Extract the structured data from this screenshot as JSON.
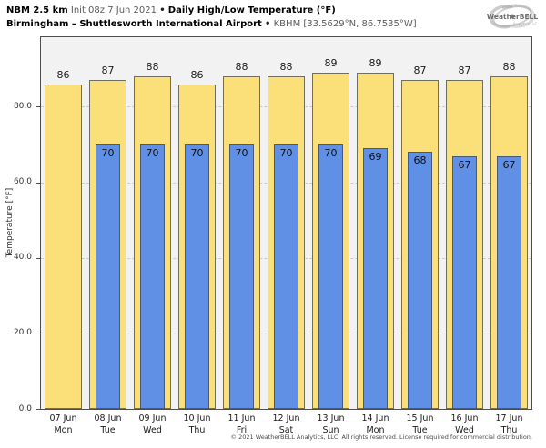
{
  "header": {
    "line1": {
      "model": "NBM 2.5 km",
      "init": "Init 08z 7 Jun 2021",
      "sep": "•",
      "product": "Daily High/Low Temperature (°F)"
    },
    "line2": {
      "location": "Birmingham – Shuttlesworth International Airport",
      "sep": "•",
      "station": "KBHM [33.5629°N, 86.7535°W]"
    }
  },
  "logo": {
    "brand": "WeatherBELL",
    "sub": "Analytics LLC"
  },
  "chart_data": {
    "type": "bar",
    "title": "NBM 2.5 km Daily High/Low Temperature (°F) — Birmingham – Shuttlesworth International Airport (KBHM)",
    "ylabel": "Temperature [°F]",
    "ylim": [
      0,
      98.4
    ],
    "yticks": [
      0,
      20,
      40,
      60,
      80
    ],
    "ytick_labels": [
      "0.0",
      "20.0",
      "40.0",
      "60.0",
      "80.0"
    ],
    "grid": "horizontal-dashed",
    "legend": "none",
    "categories": [
      {
        "date": "07 Jun",
        "day": "Mon"
      },
      {
        "date": "08 Jun",
        "day": "Tue"
      },
      {
        "date": "09 Jun",
        "day": "Wed"
      },
      {
        "date": "10 Jun",
        "day": "Thu"
      },
      {
        "date": "11 Jun",
        "day": "Fri"
      },
      {
        "date": "12 Jun",
        "day": "Sat"
      },
      {
        "date": "13 Jun",
        "day": "Sun"
      },
      {
        "date": "14 Jun",
        "day": "Mon"
      },
      {
        "date": "15 Jun",
        "day": "Tue"
      },
      {
        "date": "16 Jun",
        "day": "Wed"
      },
      {
        "date": "17 Jun",
        "day": "Thu"
      }
    ],
    "series": [
      {
        "name": "Daily High",
        "color": "#fbdf78",
        "border": "#6e6e60",
        "values": [
          86,
          87,
          88,
          86,
          88,
          88,
          89,
          89,
          87,
          87,
          88
        ]
      },
      {
        "name": "Daily Low",
        "color": "#6090e6",
        "border": "#48587a",
        "values": [
          null,
          70,
          70,
          70,
          70,
          70,
          70,
          69,
          68,
          67,
          67
        ]
      }
    ],
    "colors": {
      "plot_bg": "#f2f2f2",
      "plot_border": "#4d4d4d",
      "gridline": "#c9c9c9",
      "value_label": "#1a1a1a"
    }
  },
  "footer": {
    "copyright": "© 2021 WeatherBELL Analytics, LLC. All rights reserved. License required for commercial distribution."
  }
}
